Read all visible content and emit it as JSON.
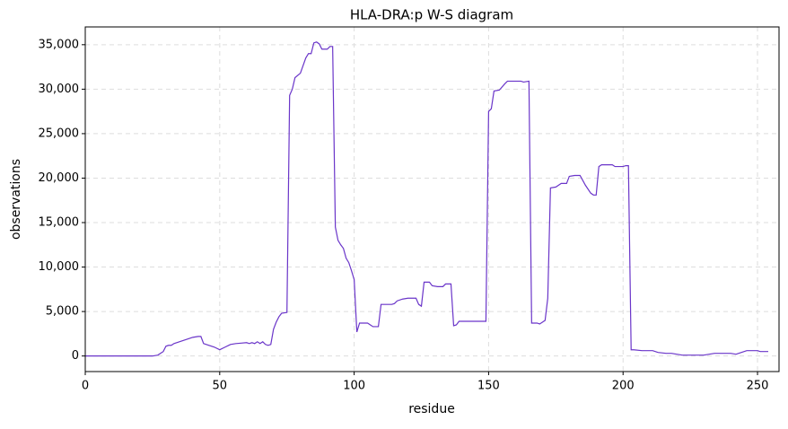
{
  "chart_data": {
    "type": "line",
    "title": "HLA-DRA:p W-S diagram",
    "x_label": "residue",
    "y_label": "observations",
    "grid": true,
    "xlim": [
      0,
      258
    ],
    "ylim": [
      -1750,
      37000
    ],
    "xticks": [
      0,
      50,
      100,
      150,
      200,
      250
    ],
    "yticks": [
      0,
      {
        "value": 5000,
        "label": "5,000"
      },
      {
        "value": 10000,
        "label": "10,000"
      },
      {
        "value": 15000,
        "label": "15,000"
      },
      {
        "value": 20000,
        "label": "20,000"
      },
      {
        "value": 25000,
        "label": "25,000"
      },
      {
        "value": 30000,
        "label": "30,000"
      },
      {
        "value": 35000,
        "label": "35,000"
      }
    ],
    "series": [
      {
        "color": "#6a35c9",
        "x": [
          0,
          25,
          27,
          28,
          29,
          30,
          31,
          32,
          33,
          34,
          36,
          38,
          40,
          42,
          43,
          44,
          46,
          48,
          50,
          52,
          54,
          56,
          58,
          60,
          61,
          62,
          63,
          64,
          65,
          66,
          67,
          68,
          69,
          70,
          71,
          72,
          73,
          75,
          76,
          77,
          78,
          80,
          82,
          83,
          84,
          85,
          86,
          87,
          88,
          90,
          91,
          92,
          93,
          94,
          95,
          96,
          97,
          98,
          99,
          100,
          101,
          102,
          105,
          106,
          107,
          109,
          110,
          114,
          115,
          116,
          118,
          120,
          123,
          124,
          125,
          126,
          128,
          129,
          131,
          133,
          134,
          136,
          137,
          138,
          139,
          149,
          150,
          151,
          152,
          154,
          156,
          157,
          162,
          163,
          165,
          166,
          168,
          169,
          171,
          172,
          173,
          175,
          177,
          179,
          180,
          182,
          184,
          186,
          188,
          189,
          190,
          191,
          192,
          194,
          196,
          197,
          200,
          201,
          202,
          203,
          204,
          207,
          211,
          213,
          216,
          218,
          220,
          222,
          230,
          232,
          234,
          240,
          242,
          244,
          246,
          250,
          251,
          254
        ],
        "values": [
          0,
          0,
          100,
          300,
          500,
          1100,
          1200,
          1200,
          1400,
          1500,
          1700,
          1900,
          2100,
          2200,
          2200,
          1400,
          1200,
          1000,
          700,
          1000,
          1300,
          1400,
          1450,
          1500,
          1400,
          1500,
          1400,
          1600,
          1400,
          1600,
          1300,
          1200,
          1300,
          3000,
          3800,
          4400,
          4800,
          4900,
          29300,
          30000,
          31300,
          31800,
          33500,
          34000,
          34000,
          35200,
          35300,
          35100,
          34500,
          34500,
          34800,
          34800,
          14500,
          13000,
          12500,
          12100,
          11000,
          10500,
          9600,
          8600,
          2700,
          3700,
          3700,
          3500,
          3300,
          3300,
          5800,
          5800,
          5900,
          6200,
          6400,
          6500,
          6500,
          5800,
          5600,
          8300,
          8300,
          7900,
          7800,
          7800,
          8100,
          8100,
          3400,
          3500,
          3900,
          3900,
          27500,
          27800,
          29800,
          29900,
          30600,
          30900,
          30900,
          30800,
          30900,
          3700,
          3700,
          3600,
          4000,
          6500,
          18900,
          19000,
          19400,
          19400,
          20200,
          20300,
          20300,
          19200,
          18300,
          18100,
          18100,
          21300,
          21500,
          21500,
          21500,
          21300,
          21300,
          21400,
          21400,
          700,
          700,
          600,
          600,
          400,
          300,
          300,
          200,
          100,
          100,
          200,
          300,
          300,
          200,
          400,
          600,
          600,
          500,
          500
        ]
      }
    ]
  }
}
